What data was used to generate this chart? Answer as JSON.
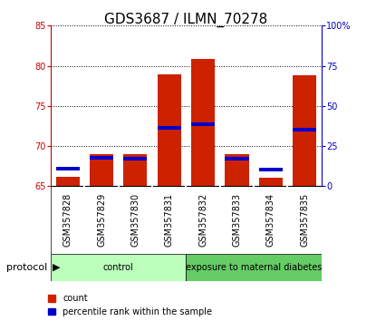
{
  "title": "GDS3687 / ILMN_70278",
  "samples": [
    "GSM357828",
    "GSM357829",
    "GSM357830",
    "GSM357831",
    "GSM357832",
    "GSM357833",
    "GSM357834",
    "GSM357835"
  ],
  "red_bar_bottoms": [
    65,
    65,
    65,
    65,
    65,
    65,
    65,
    65
  ],
  "red_bar_tops": [
    66.2,
    69.0,
    69.0,
    78.9,
    80.8,
    69.0,
    66.0,
    78.8
  ],
  "blue_bar_values": [
    67.0,
    68.3,
    68.2,
    72.0,
    72.5,
    68.2,
    66.8,
    71.8
  ],
  "blue_bar_height": 0.45,
  "ylim_left": [
    65,
    85
  ],
  "ylim_right": [
    0,
    100
  ],
  "yticks_left": [
    65,
    70,
    75,
    80,
    85
  ],
  "yticks_right": [
    0,
    25,
    50,
    75,
    100
  ],
  "ytick_labels_right": [
    "0",
    "25",
    "50",
    "75",
    "100%"
  ],
  "left_axis_color": "#cc0000",
  "right_axis_color": "#0000cc",
  "groups": [
    {
      "label": "control",
      "start": 0,
      "end": 4,
      "color": "#bbffbb"
    },
    {
      "label": "exposure to maternal diabetes",
      "start": 4,
      "end": 8,
      "color": "#66cc66"
    }
  ],
  "protocol_label": "protocol",
  "sample_box_color": "#cccccc",
  "plot_bg_color": "#ffffff",
  "red_color": "#cc2200",
  "blue_color": "#0000cc",
  "legend_red_label": "count",
  "legend_blue_label": "percentile rank within the sample",
  "tick_label_fontsize": 7,
  "title_fontsize": 11,
  "sample_fontsize": 7
}
